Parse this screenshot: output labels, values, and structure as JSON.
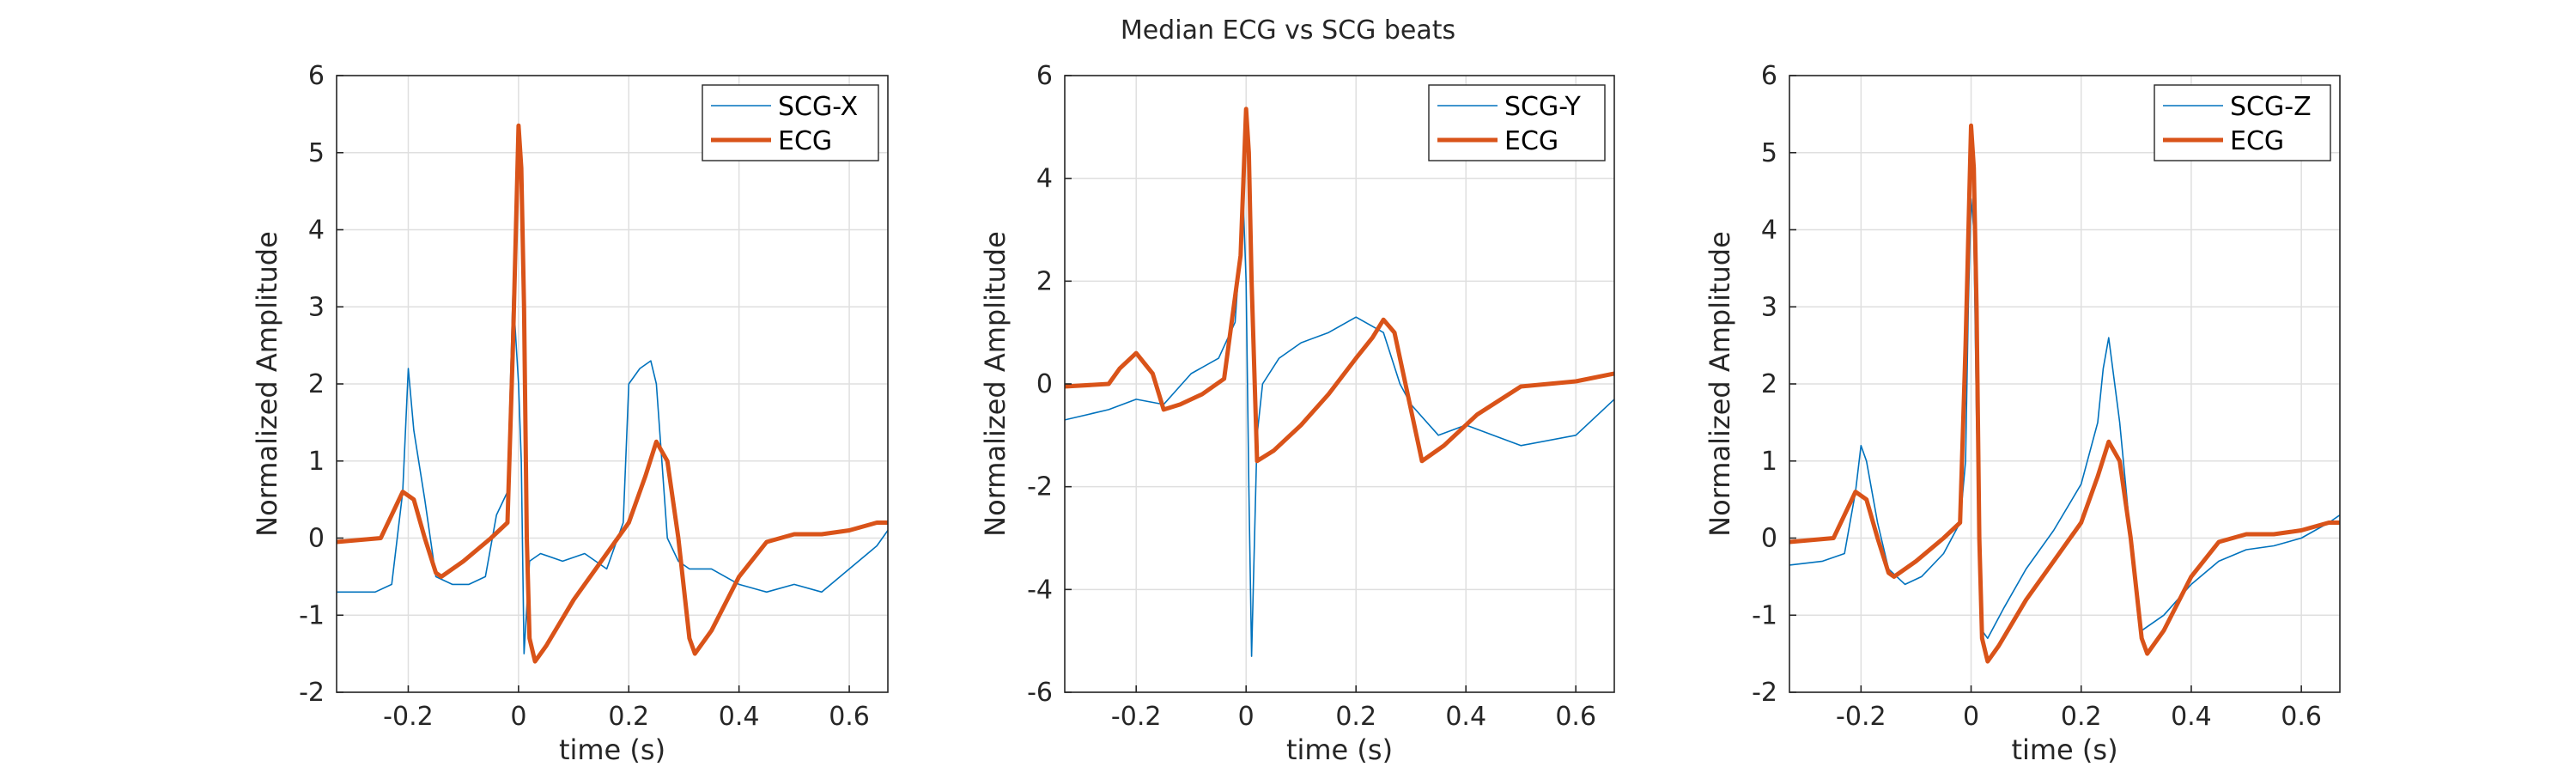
{
  "figure": {
    "title": "Median ECG vs SCG beats"
  },
  "colors": {
    "scg": "#0072BD",
    "ecg": "#D95319",
    "grid": "#DFDFDF",
    "axis": "#262626"
  },
  "chart_data": [
    {
      "type": "line",
      "xlabel": "time (s)",
      "ylabel": "Normalized Amplitude",
      "xlim": [
        -0.33,
        0.67
      ],
      "ylim": [
        -2,
        6
      ],
      "xticks": [
        -0.2,
        0,
        0.2,
        0.4,
        0.6
      ],
      "xtick_labels": [
        "-0.2",
        "0",
        "0.2",
        "0.4",
        "0.6"
      ],
      "yticks": [
        -2,
        -1,
        0,
        1,
        2,
        3,
        4,
        5,
        6
      ],
      "ytick_labels": [
        "-2",
        "-1",
        "0",
        "1",
        "2",
        "3",
        "4",
        "5",
        "6"
      ],
      "grid": true,
      "legend_position": "top-right",
      "series": [
        {
          "name": "SCG-X",
          "color": "#0072BD",
          "x": [
            -0.33,
            -0.3,
            -0.26,
            -0.23,
            -0.21,
            -0.2,
            -0.19,
            -0.17,
            -0.15,
            -0.12,
            -0.09,
            -0.06,
            -0.04,
            -0.02,
            -0.01,
            0,
            0.005,
            0.01,
            0.02,
            0.04,
            0.08,
            0.12,
            0.16,
            0.19,
            0.2,
            0.22,
            0.24,
            0.25,
            0.27,
            0.29,
            0.31,
            0.35,
            0.4,
            0.45,
            0.5,
            0.55,
            0.6,
            0.65,
            0.67
          ],
          "y": [
            -0.7,
            -0.7,
            -0.7,
            -0.6,
            0.6,
            2.2,
            1.4,
            0.5,
            -0.5,
            -0.6,
            -0.6,
            -0.5,
            0.3,
            0.6,
            3.2,
            2.0,
            1.0,
            -1.5,
            -0.3,
            -0.2,
            -0.3,
            -0.2,
            -0.4,
            0.2,
            2.0,
            2.2,
            2.3,
            2.0,
            0.0,
            -0.3,
            -0.4,
            -0.4,
            -0.6,
            -0.7,
            -0.6,
            -0.7,
            -0.4,
            -0.1,
            0.1
          ]
        },
        {
          "name": "ECG",
          "color": "#D95319",
          "x": [
            -0.33,
            -0.25,
            -0.23,
            -0.21,
            -0.19,
            -0.17,
            -0.15,
            -0.14,
            -0.1,
            -0.05,
            -0.02,
            -0.01,
            0,
            0.005,
            0.01,
            0.015,
            0.02,
            0.03,
            0.05,
            0.1,
            0.15,
            0.2,
            0.23,
            0.25,
            0.27,
            0.29,
            0.31,
            0.32,
            0.35,
            0.4,
            0.45,
            0.5,
            0.55,
            0.6,
            0.65,
            0.67
          ],
          "y": [
            -0.05,
            0.0,
            0.3,
            0.6,
            0.5,
            0.0,
            -0.45,
            -0.5,
            -0.3,
            0.0,
            0.2,
            2.5,
            5.35,
            4.8,
            3.0,
            0.0,
            -1.3,
            -1.6,
            -1.4,
            -0.8,
            -0.3,
            0.2,
            0.8,
            1.25,
            1.0,
            0.0,
            -1.3,
            -1.5,
            -1.2,
            -0.5,
            -0.05,
            0.05,
            0.05,
            0.1,
            0.2,
            0.2
          ]
        }
      ]
    },
    {
      "type": "line",
      "xlabel": "time (s)",
      "ylabel": "Normalized Amplitude",
      "xlim": [
        -0.33,
        0.67
      ],
      "ylim": [
        -6,
        6
      ],
      "xticks": [
        -0.2,
        0,
        0.2,
        0.4,
        0.6
      ],
      "xtick_labels": [
        "-0.2",
        "0",
        "0.2",
        "0.4",
        "0.6"
      ],
      "yticks": [
        -6,
        -4,
        -2,
        0,
        2,
        4,
        6
      ],
      "ytick_labels": [
        "-6",
        "-4",
        "-2",
        "0",
        "2",
        "4",
        "6"
      ],
      "grid": true,
      "legend_position": "top-right",
      "series": [
        {
          "name": "SCG-Y",
          "color": "#0072BD",
          "x": [
            -0.33,
            -0.25,
            -0.2,
            -0.15,
            -0.1,
            -0.05,
            -0.02,
            -0.005,
            0,
            0.005,
            0.01,
            0.02,
            0.03,
            0.06,
            0.1,
            0.15,
            0.2,
            0.25,
            0.28,
            0.3,
            0.35,
            0.4,
            0.5,
            0.6,
            0.67
          ],
          "y": [
            -0.7,
            -0.5,
            -0.3,
            -0.4,
            0.2,
            0.5,
            1.2,
            3.5,
            2.0,
            -2.0,
            -5.3,
            -1.0,
            0.0,
            0.5,
            0.8,
            1.0,
            1.3,
            1.0,
            0.0,
            -0.4,
            -1.0,
            -0.8,
            -1.2,
            -1.0,
            -0.3
          ]
        },
        {
          "name": "ECG",
          "color": "#D95319",
          "x": [
            -0.33,
            -0.25,
            -0.23,
            -0.2,
            -0.17,
            -0.15,
            -0.12,
            -0.08,
            -0.04,
            -0.01,
            0,
            0.005,
            0.01,
            0.02,
            0.05,
            0.1,
            0.15,
            0.2,
            0.23,
            0.25,
            0.27,
            0.3,
            0.32,
            0.36,
            0.42,
            0.5,
            0.6,
            0.67
          ],
          "y": [
            -0.05,
            0.0,
            0.3,
            0.6,
            0.2,
            -0.5,
            -0.4,
            -0.2,
            0.1,
            2.5,
            5.35,
            4.5,
            2.0,
            -1.5,
            -1.3,
            -0.8,
            -0.2,
            0.5,
            0.9,
            1.25,
            1.0,
            -0.5,
            -1.5,
            -1.2,
            -0.6,
            -0.05,
            0.05,
            0.2
          ]
        }
      ]
    },
    {
      "type": "line",
      "xlabel": "time (s)",
      "ylabel": "Normalized Amplitude",
      "xlim": [
        -0.33,
        0.67
      ],
      "ylim": [
        -2,
        6
      ],
      "xticks": [
        -0.2,
        0,
        0.2,
        0.4,
        0.6
      ],
      "xtick_labels": [
        "-0.2",
        "0",
        "0.2",
        "0.4",
        "0.6"
      ],
      "yticks": [
        -2,
        -1,
        0,
        1,
        2,
        3,
        4,
        5,
        6
      ],
      "ytick_labels": [
        "-2",
        "-1",
        "0",
        "1",
        "2",
        "3",
        "4",
        "5",
        "6"
      ],
      "grid": true,
      "legend_position": "top-right",
      "series": [
        {
          "name": "SCG-Z",
          "color": "#0072BD",
          "x": [
            -0.33,
            -0.27,
            -0.23,
            -0.21,
            -0.2,
            -0.19,
            -0.17,
            -0.15,
            -0.12,
            -0.09,
            -0.05,
            -0.02,
            -0.01,
            -0.005,
            0,
            0.005,
            0.01,
            0.02,
            0.03,
            0.06,
            0.1,
            0.15,
            0.2,
            0.23,
            0.24,
            0.25,
            0.27,
            0.29,
            0.31,
            0.35,
            0.4,
            0.45,
            0.5,
            0.55,
            0.6,
            0.65,
            0.67
          ],
          "y": [
            -0.35,
            -0.3,
            -0.2,
            0.6,
            1.2,
            1.0,
            0.2,
            -0.4,
            -0.6,
            -0.5,
            -0.2,
            0.2,
            1.0,
            3.0,
            4.4,
            4.0,
            1.5,
            -1.2,
            -1.3,
            -0.9,
            -0.4,
            0.1,
            0.7,
            1.5,
            2.2,
            2.6,
            1.5,
            0.0,
            -1.2,
            -1.0,
            -0.6,
            -0.3,
            -0.15,
            -0.1,
            0.0,
            0.2,
            0.3
          ]
        },
        {
          "name": "ECG",
          "color": "#D95319",
          "x": [
            -0.33,
            -0.25,
            -0.23,
            -0.21,
            -0.19,
            -0.17,
            -0.15,
            -0.14,
            -0.1,
            -0.05,
            -0.02,
            -0.01,
            0,
            0.005,
            0.01,
            0.015,
            0.02,
            0.03,
            0.05,
            0.1,
            0.15,
            0.2,
            0.23,
            0.25,
            0.27,
            0.29,
            0.31,
            0.32,
            0.35,
            0.4,
            0.45,
            0.5,
            0.55,
            0.6,
            0.65,
            0.67
          ],
          "y": [
            -0.05,
            0.0,
            0.3,
            0.6,
            0.5,
            0.0,
            -0.45,
            -0.5,
            -0.3,
            0.0,
            0.2,
            2.5,
            5.35,
            4.8,
            3.0,
            0.0,
            -1.3,
            -1.6,
            -1.4,
            -0.8,
            -0.3,
            0.2,
            0.8,
            1.25,
            1.0,
            0.0,
            -1.3,
            -1.5,
            -1.2,
            -0.5,
            -0.05,
            0.05,
            0.05,
            0.1,
            0.2,
            0.2
          ]
        }
      ]
    }
  ]
}
